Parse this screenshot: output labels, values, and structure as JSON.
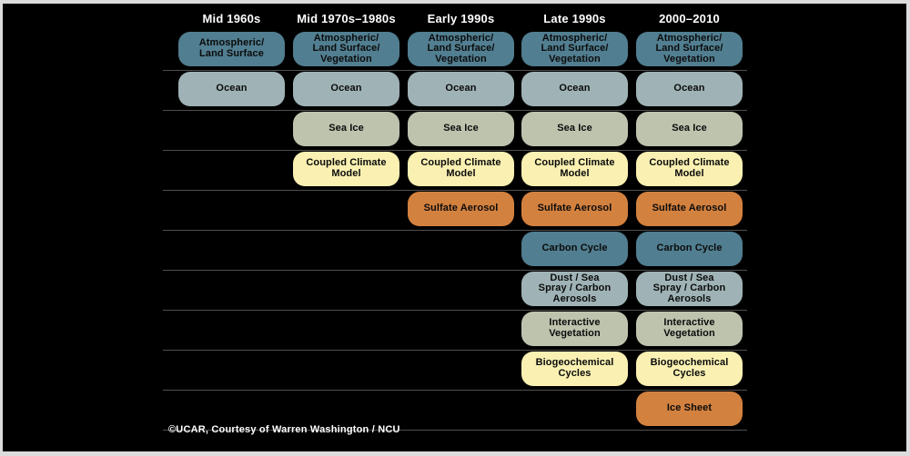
{
  "palette": {
    "teal": "#517e90",
    "oceangray": "#9fb3b6",
    "sage": "#bec3ae",
    "yellow": "#f9f0b2",
    "orange": "#d3813f",
    "canvas_background": "#000000",
    "frame_background": "#dcdcdc",
    "separator_line": "#4f4f4f",
    "header_text": "#ffffff",
    "box_text": "#0b0b0b"
  },
  "columns": [
    "Mid 1960s",
    "Mid 1970s–1980s",
    "Early 1990s",
    "Late 1990s",
    "2000–2010"
  ],
  "rows": [
    {
      "id": "atmospheric-land-surface",
      "color": "teal",
      "cells": [
        {
          "col": 0,
          "label": "Atmospheric/\nLand Surface"
        },
        {
          "col": 1,
          "label": "Atmospheric/\nLand Surface/\nVegetation"
        },
        {
          "col": 2,
          "label": "Atmospheric/\nLand Surface/\nVegetation"
        },
        {
          "col": 3,
          "label": "Atmospheric/\nLand Surface/\nVegetation"
        },
        {
          "col": 4,
          "label": "Atmospheric/\nLand Surface/\nVegetation"
        }
      ]
    },
    {
      "id": "ocean",
      "color": "oceangray",
      "cells": [
        {
          "col": 0,
          "label": "Ocean"
        },
        {
          "col": 1,
          "label": "Ocean"
        },
        {
          "col": 2,
          "label": "Ocean"
        },
        {
          "col": 3,
          "label": "Ocean"
        },
        {
          "col": 4,
          "label": "Ocean"
        }
      ]
    },
    {
      "id": "sea-ice",
      "color": "sage",
      "cells": [
        {
          "col": 1,
          "label": "Sea Ice"
        },
        {
          "col": 2,
          "label": "Sea Ice"
        },
        {
          "col": 3,
          "label": "Sea Ice"
        },
        {
          "col": 4,
          "label": "Sea Ice"
        }
      ]
    },
    {
      "id": "coupled-climate-model",
      "color": "yellow",
      "cells": [
        {
          "col": 1,
          "label": "Coupled Climate\nModel"
        },
        {
          "col": 2,
          "label": "Coupled Climate\nModel"
        },
        {
          "col": 3,
          "label": "Coupled Climate\nModel"
        },
        {
          "col": 4,
          "label": "Coupled Climate\nModel"
        }
      ]
    },
    {
      "id": "sulfate-aerosol",
      "color": "orange",
      "cells": [
        {
          "col": 2,
          "label": "Sulfate Aerosol"
        },
        {
          "col": 3,
          "label": "Sulfate Aerosol"
        },
        {
          "col": 4,
          "label": "Sulfate Aerosol"
        }
      ]
    },
    {
      "id": "carbon-cycle",
      "color": "teal",
      "cells": [
        {
          "col": 3,
          "label": "Carbon Cycle"
        },
        {
          "col": 4,
          "label": "Carbon Cycle"
        }
      ]
    },
    {
      "id": "dust-sea-spray-carbon-aerosols",
      "color": "oceangray",
      "cells": [
        {
          "col": 3,
          "label": "Dust / Sea\nSpray / Carbon\nAerosols"
        },
        {
          "col": 4,
          "label": "Dust / Sea\nSpray / Carbon\nAerosols"
        }
      ]
    },
    {
      "id": "interactive-vegetation",
      "color": "sage",
      "cells": [
        {
          "col": 3,
          "label": "Interactive\nVegetation"
        },
        {
          "col": 4,
          "label": "Interactive\nVegetation"
        }
      ]
    },
    {
      "id": "biogeochemical-cycles",
      "color": "yellow",
      "cells": [
        {
          "col": 3,
          "label": "Biogeochemical\nCycles"
        },
        {
          "col": 4,
          "label": "Biogeochemical\nCycles"
        }
      ]
    },
    {
      "id": "ice-sheet",
      "color": "orange",
      "cells": [
        {
          "col": 4,
          "label": "Ice Sheet"
        }
      ]
    }
  ],
  "attribution": "©UCAR, Courtesy of Warren Washington / NCU"
}
